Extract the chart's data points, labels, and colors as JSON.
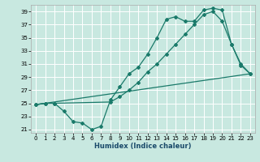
{
  "background_color": "#c8e8e0",
  "grid_color": "#ffffff",
  "line_color": "#1a7a6a",
  "xlabel": "Humidex (Indice chaleur)",
  "ylim": [
    20.5,
    40
  ],
  "xlim": [
    -0.5,
    23.5
  ],
  "yticks": [
    21,
    23,
    25,
    27,
    29,
    31,
    33,
    35,
    37,
    39
  ],
  "xticks": [
    0,
    1,
    2,
    3,
    4,
    5,
    6,
    7,
    8,
    9,
    10,
    11,
    12,
    13,
    14,
    15,
    16,
    17,
    18,
    19,
    20,
    21,
    22,
    23
  ],
  "curve1_x": [
    0,
    1,
    2,
    3,
    4,
    5,
    6,
    7,
    8,
    9,
    10,
    11,
    12,
    13,
    14,
    15,
    16,
    17,
    18,
    19,
    20,
    21,
    22,
    23
  ],
  "curve1_y": [
    24.8,
    25.0,
    25.0,
    23.8,
    22.2,
    22.0,
    21.0,
    21.5,
    25.5,
    27.5,
    29.5,
    30.5,
    32.5,
    35.0,
    37.8,
    38.2,
    37.5,
    37.5,
    39.2,
    39.5,
    39.2,
    34.0,
    31.0,
    29.5
  ],
  "curve2_x": [
    0,
    1,
    2,
    8,
    9,
    10,
    11,
    12,
    13,
    14,
    15,
    16,
    17,
    18,
    19,
    20,
    21,
    22,
    23
  ],
  "curve2_y": [
    24.8,
    25.0,
    25.0,
    25.2,
    26.0,
    27.0,
    28.2,
    29.8,
    31.0,
    32.5,
    34.0,
    35.5,
    37.0,
    38.5,
    39.0,
    37.5,
    34.0,
    30.8,
    29.5
  ],
  "curve3_x": [
    0,
    23
  ],
  "curve3_y": [
    24.8,
    29.5
  ]
}
